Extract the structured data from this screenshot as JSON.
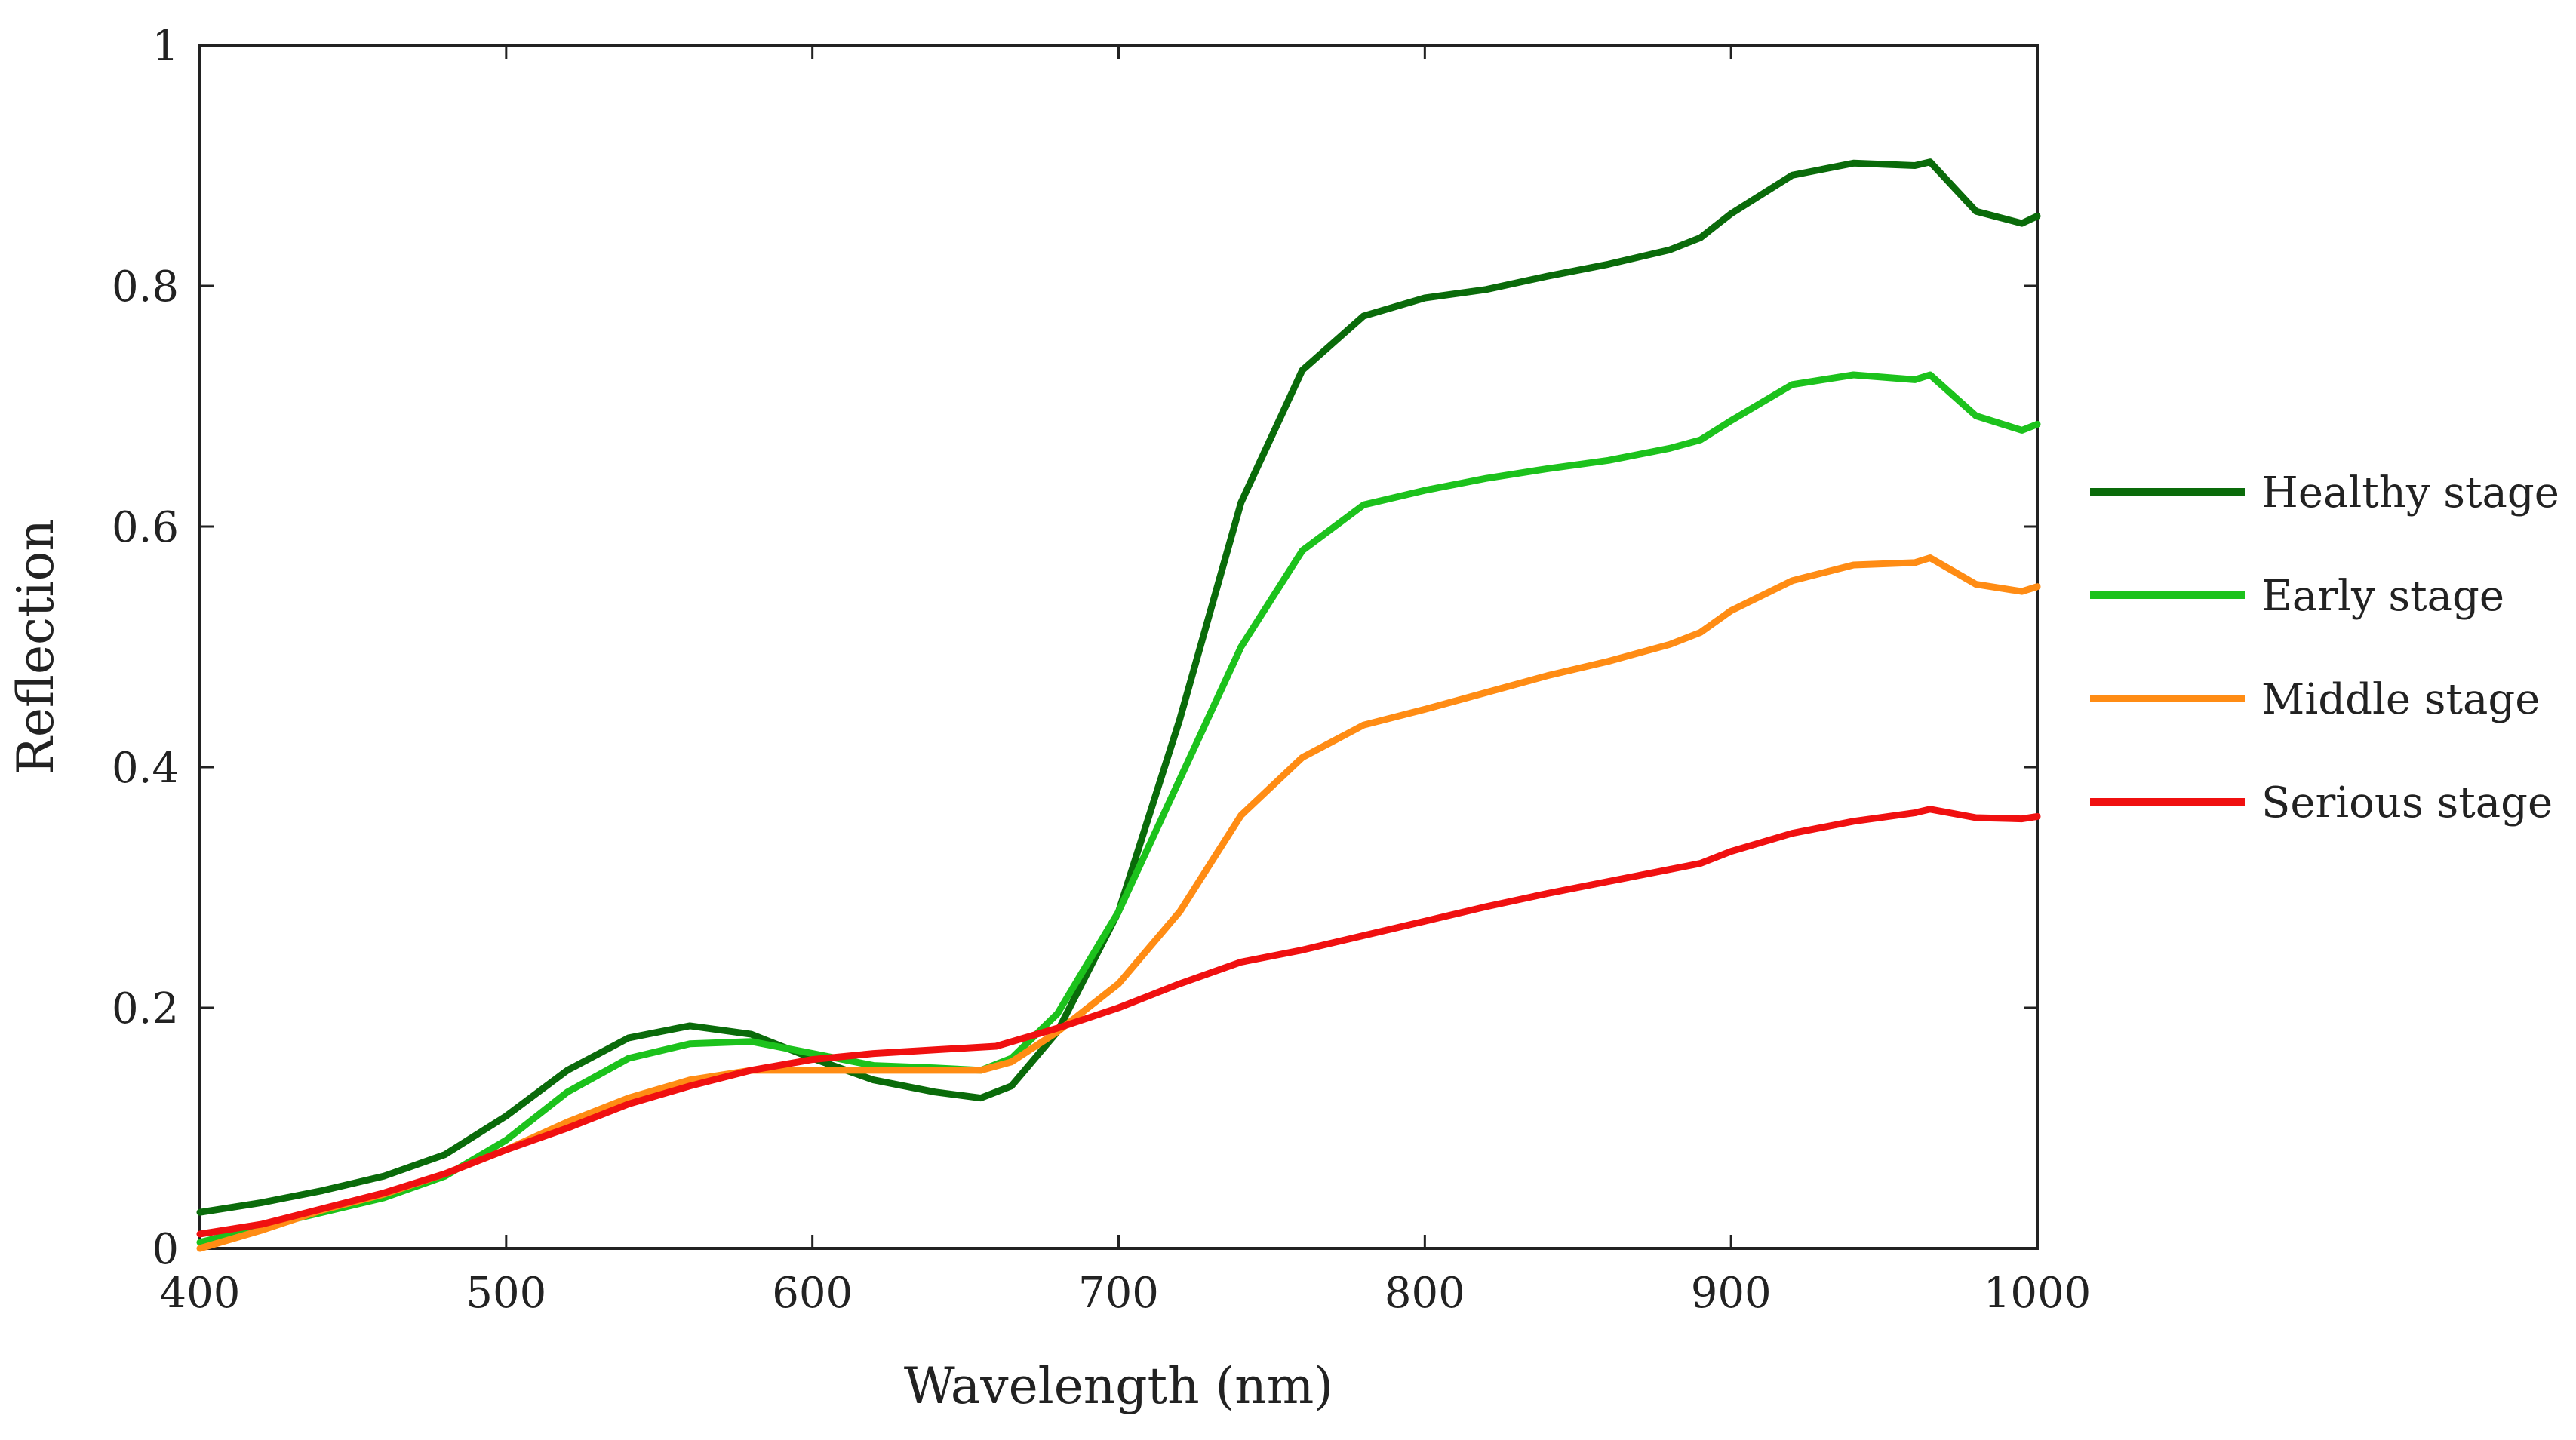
{
  "chart_data": {
    "type": "line",
    "title": "",
    "xlabel": "Wavelength (nm)",
    "ylabel": "Reflection",
    "xlim": [
      400,
      1000
    ],
    "ylim": [
      0,
      1
    ],
    "xticks": [
      400,
      500,
      600,
      700,
      800,
      900,
      1000
    ],
    "yticks": [
      0,
      0.2,
      0.4,
      0.6,
      0.8,
      1
    ],
    "ytick_labels": [
      "0",
      "0.2",
      "0.4",
      "0.6",
      "0.8",
      "1"
    ],
    "legend_position": "right",
    "series": [
      {
        "name": "Healthy stage",
        "color": "#0a6b0a",
        "points": [
          [
            400,
            0.03
          ],
          [
            420,
            0.038
          ],
          [
            440,
            0.048
          ],
          [
            460,
            0.06
          ],
          [
            480,
            0.078
          ],
          [
            500,
            0.11
          ],
          [
            520,
            0.148
          ],
          [
            540,
            0.175
          ],
          [
            560,
            0.185
          ],
          [
            580,
            0.178
          ],
          [
            600,
            0.158
          ],
          [
            620,
            0.14
          ],
          [
            640,
            0.13
          ],
          [
            655,
            0.125
          ],
          [
            665,
            0.135
          ],
          [
            680,
            0.18
          ],
          [
            700,
            0.28
          ],
          [
            720,
            0.44
          ],
          [
            740,
            0.62
          ],
          [
            760,
            0.73
          ],
          [
            780,
            0.775
          ],
          [
            800,
            0.79
          ],
          [
            820,
            0.797
          ],
          [
            840,
            0.808
          ],
          [
            860,
            0.818
          ],
          [
            880,
            0.83
          ],
          [
            890,
            0.84
          ],
          [
            900,
            0.86
          ],
          [
            920,
            0.892
          ],
          [
            940,
            0.902
          ],
          [
            960,
            0.9
          ],
          [
            965,
            0.903
          ],
          [
            980,
            0.862
          ],
          [
            995,
            0.852
          ],
          [
            1000,
            0.858
          ]
        ]
      },
      {
        "name": "Early stage",
        "color": "#1cc21c",
        "points": [
          [
            400,
            0.005
          ],
          [
            420,
            0.018
          ],
          [
            440,
            0.03
          ],
          [
            460,
            0.042
          ],
          [
            480,
            0.06
          ],
          [
            500,
            0.09
          ],
          [
            520,
            0.13
          ],
          [
            540,
            0.158
          ],
          [
            560,
            0.17
          ],
          [
            580,
            0.172
          ],
          [
            600,
            0.162
          ],
          [
            620,
            0.152
          ],
          [
            640,
            0.15
          ],
          [
            655,
            0.148
          ],
          [
            665,
            0.158
          ],
          [
            680,
            0.195
          ],
          [
            700,
            0.28
          ],
          [
            720,
            0.39
          ],
          [
            740,
            0.5
          ],
          [
            760,
            0.58
          ],
          [
            780,
            0.618
          ],
          [
            800,
            0.63
          ],
          [
            820,
            0.64
          ],
          [
            840,
            0.648
          ],
          [
            860,
            0.655
          ],
          [
            880,
            0.665
          ],
          [
            890,
            0.672
          ],
          [
            900,
            0.688
          ],
          [
            920,
            0.718
          ],
          [
            940,
            0.726
          ],
          [
            960,
            0.722
          ],
          [
            965,
            0.726
          ],
          [
            980,
            0.692
          ],
          [
            995,
            0.68
          ],
          [
            1000,
            0.685
          ]
        ]
      },
      {
        "name": "Middle stage",
        "color": "#ff8c14",
        "points": [
          [
            400,
            0.0
          ],
          [
            420,
            0.015
          ],
          [
            440,
            0.032
          ],
          [
            460,
            0.045
          ],
          [
            480,
            0.062
          ],
          [
            500,
            0.082
          ],
          [
            520,
            0.105
          ],
          [
            540,
            0.125
          ],
          [
            560,
            0.14
          ],
          [
            580,
            0.148
          ],
          [
            600,
            0.148
          ],
          [
            620,
            0.148
          ],
          [
            640,
            0.148
          ],
          [
            655,
            0.148
          ],
          [
            665,
            0.155
          ],
          [
            680,
            0.18
          ],
          [
            700,
            0.22
          ],
          [
            720,
            0.28
          ],
          [
            740,
            0.36
          ],
          [
            760,
            0.408
          ],
          [
            780,
            0.435
          ],
          [
            800,
            0.448
          ],
          [
            820,
            0.462
          ],
          [
            840,
            0.476
          ],
          [
            860,
            0.488
          ],
          [
            880,
            0.502
          ],
          [
            890,
            0.512
          ],
          [
            900,
            0.53
          ],
          [
            920,
            0.555
          ],
          [
            940,
            0.568
          ],
          [
            960,
            0.57
          ],
          [
            965,
            0.574
          ],
          [
            980,
            0.552
          ],
          [
            995,
            0.546
          ],
          [
            1000,
            0.55
          ]
        ]
      },
      {
        "name": "Serious stage",
        "color": "#f01010",
        "points": [
          [
            400,
            0.012
          ],
          [
            420,
            0.02
          ],
          [
            440,
            0.033
          ],
          [
            460,
            0.046
          ],
          [
            480,
            0.062
          ],
          [
            500,
            0.082
          ],
          [
            520,
            0.1
          ],
          [
            540,
            0.12
          ],
          [
            560,
            0.135
          ],
          [
            580,
            0.148
          ],
          [
            600,
            0.157
          ],
          [
            620,
            0.162
          ],
          [
            640,
            0.165
          ],
          [
            660,
            0.168
          ],
          [
            680,
            0.183
          ],
          [
            700,
            0.2
          ],
          [
            720,
            0.22
          ],
          [
            740,
            0.238
          ],
          [
            760,
            0.248
          ],
          [
            780,
            0.26
          ],
          [
            800,
            0.272
          ],
          [
            820,
            0.284
          ],
          [
            840,
            0.295
          ],
          [
            860,
            0.305
          ],
          [
            880,
            0.315
          ],
          [
            890,
            0.32
          ],
          [
            900,
            0.33
          ],
          [
            920,
            0.345
          ],
          [
            940,
            0.355
          ],
          [
            960,
            0.362
          ],
          [
            965,
            0.365
          ],
          [
            980,
            0.358
          ],
          [
            995,
            0.357
          ],
          [
            1000,
            0.359
          ]
        ]
      }
    ]
  }
}
